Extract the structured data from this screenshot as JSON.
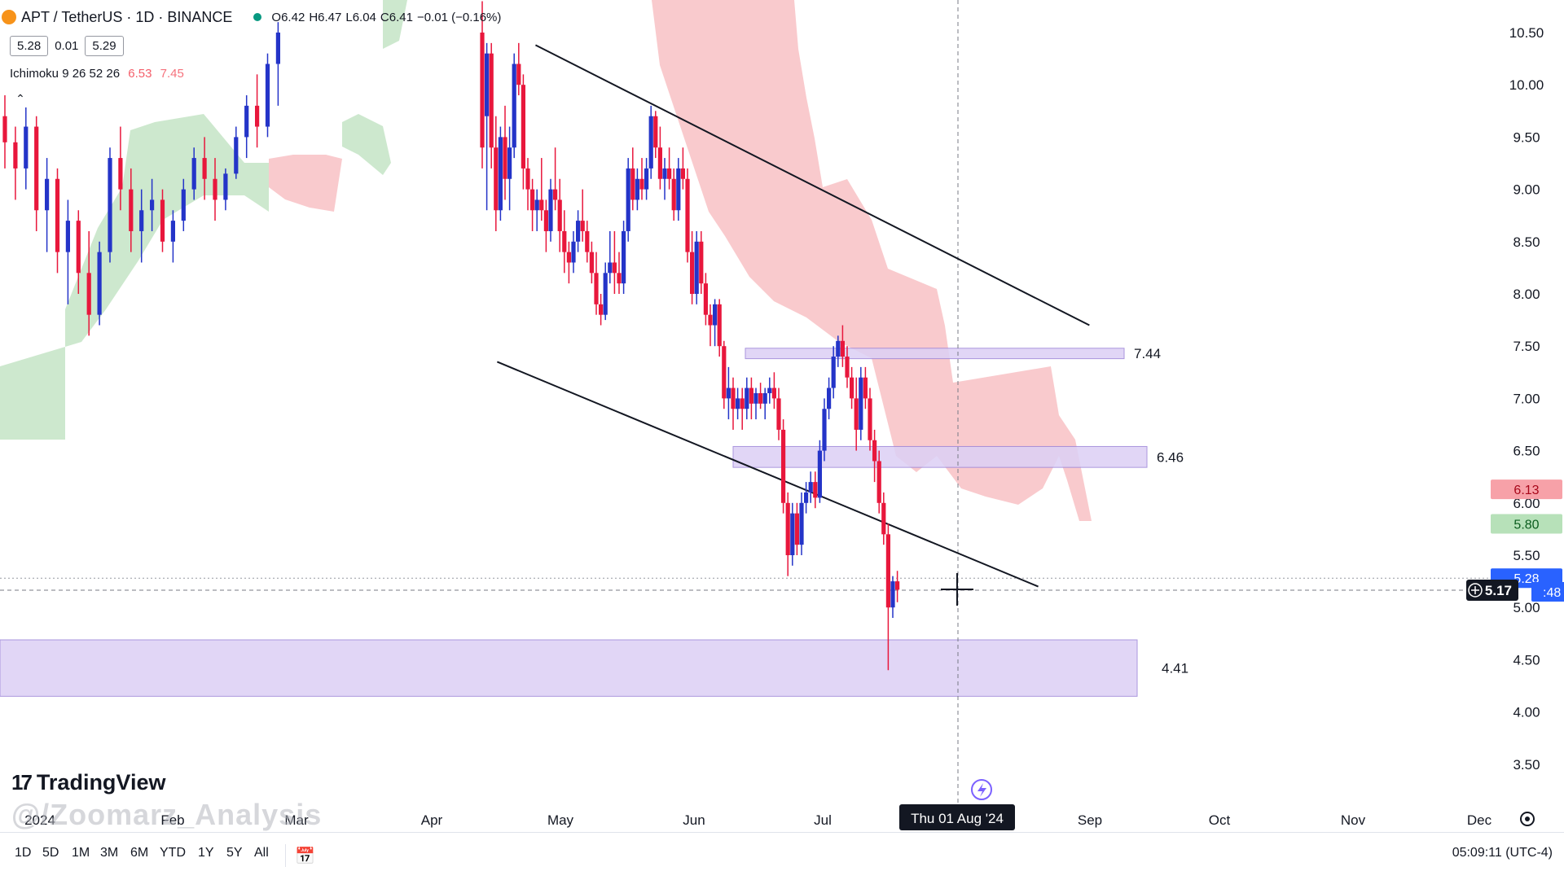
{
  "header": {
    "symbol": "APT / TetherUS · 1D · BINANCE",
    "open": "O6.42",
    "high": "H6.47",
    "low": "L6.04",
    "close": "C6.41",
    "change": "−0.01 (−0.16%)",
    "bid": "5.28",
    "spread": "0.01",
    "ask": "5.29"
  },
  "indicator": {
    "name": "Ichimoku 9 26 52 26",
    "value1": "6.53",
    "value2": "7.45",
    "collapse_icon": "chevron-up-icon"
  },
  "brand": {
    "logo_text": "TradingView",
    "watermark": "@/Zoomarz_Analysis"
  },
  "toolbar": {
    "timeframes": [
      "1D",
      "5D",
      "1M",
      "3M",
      "6M",
      "YTD",
      "1Y",
      "5Y",
      "All"
    ],
    "calendar_icon": "calendar-range-icon",
    "clock": "05:09:11 (UTC-4)"
  },
  "colors": {
    "up_candle": "#2434c8",
    "down_candle": "#e8173c",
    "bull_cloud": "#c8e6c9",
    "bear_cloud": "#f8c4c8",
    "zone": "#dcd0f5",
    "zone_border": "#9c84d8",
    "price_tag": "#2962ff",
    "red_tag": "#f7a1a8",
    "green_tag": "#b7e1b9"
  },
  "chart_data": {
    "type": "candlestick",
    "symbol": "APT / TetherUS",
    "interval": "1D",
    "y_axis": {
      "ticks": [
        "10.50",
        "10.00",
        "9.50",
        "9.00",
        "8.50",
        "8.00",
        "7.50",
        "7.00",
        "6.50",
        "6.00",
        "5.50",
        "5.00",
        "4.50",
        "4.00",
        "3.50"
      ],
      "range": [
        3.3,
        10.8
      ]
    },
    "x_axis": {
      "ticks": [
        "2024",
        "Feb",
        "Mar",
        "Apr",
        "May",
        "Jun",
        "Jul",
        "Sep",
        "Oct",
        "Nov",
        "Dec"
      ],
      "crosshair_label": "Thu 01 Aug '24"
    },
    "current_price": "5.17",
    "price_tags": [
      {
        "label": "6.13",
        "value": 6.13,
        "style": "red"
      },
      {
        "label": "5.80",
        "value": 5.8,
        "style": "green"
      },
      {
        "label": "5.28",
        "value": 5.28,
        "style": "blue"
      },
      {
        "label": ":48",
        "value": 5.15,
        "style": "blue"
      }
    ],
    "zones": [
      {
        "label": "7.44",
        "top": 7.48,
        "bottom": 7.38,
        "start": "Jun",
        "end": "Aug"
      },
      {
        "label": "6.46",
        "top": 6.54,
        "bottom": 6.34,
        "start": "Jun",
        "end": "Aug"
      },
      {
        "label": "4.41",
        "top": 4.69,
        "bottom": 4.15,
        "start": "2024",
        "end": "Aug"
      }
    ],
    "trendlines": [
      {
        "from": [
          "2024-04-26",
          10.38
        ],
        "to": [
          "2024-09-03",
          7.7
        ]
      },
      {
        "from": [
          "2024-04-17",
          7.35
        ],
        "to": [
          "2024-08-22",
          5.2
        ]
      }
    ],
    "candles_ohlc": [
      [
        9.7,
        9.9,
        9.2,
        9.45
      ],
      [
        9.45,
        9.6,
        8.9,
        9.2
      ],
      [
        9.2,
        9.8,
        9.0,
        9.6
      ],
      [
        9.6,
        9.7,
        8.6,
        8.8
      ],
      [
        8.8,
        9.3,
        8.4,
        9.1
      ],
      [
        9.1,
        9.2,
        8.2,
        8.4
      ],
      [
        8.4,
        8.9,
        7.9,
        8.7
      ],
      [
        8.7,
        8.8,
        8.0,
        8.2
      ],
      [
        8.2,
        8.6,
        7.6,
        7.8
      ],
      [
        7.8,
        8.5,
        7.7,
        8.4
      ],
      [
        8.4,
        9.4,
        8.3,
        9.3
      ],
      [
        9.3,
        9.6,
        8.8,
        9.0
      ],
      [
        9.0,
        9.2,
        8.4,
        8.6
      ],
      [
        8.6,
        9.0,
        8.3,
        8.8
      ],
      [
        8.8,
        9.1,
        8.6,
        8.9
      ],
      [
        8.9,
        9.0,
        8.4,
        8.5
      ],
      [
        8.5,
        8.8,
        8.3,
        8.7
      ],
      [
        8.7,
        9.1,
        8.6,
        9.0
      ],
      [
        9.0,
        9.4,
        8.9,
        9.3
      ],
      [
        9.3,
        9.5,
        8.9,
        9.1
      ],
      [
        9.1,
        9.3,
        8.7,
        8.9
      ],
      [
        8.9,
        9.2,
        8.8,
        9.15
      ],
      [
        9.15,
        9.6,
        9.1,
        9.5
      ],
      [
        9.5,
        9.9,
        9.3,
        9.8
      ],
      [
        9.8,
        10.1,
        9.4,
        9.6
      ],
      [
        9.6,
        10.3,
        9.5,
        10.2
      ],
      [
        10.2,
        10.6,
        9.8,
        10.5
      ],
      [
        10.5,
        10.8,
        9.2,
        9.4
      ],
      [
        9.7,
        10.4,
        8.8,
        10.3
      ],
      [
        10.3,
        10.4,
        9.2,
        9.4
      ],
      [
        9.4,
        9.7,
        8.6,
        8.8
      ],
      [
        8.8,
        9.6,
        8.7,
        9.5
      ],
      [
        9.5,
        9.8,
        8.9,
        9.1
      ],
      [
        9.1,
        9.6,
        8.8,
        9.4
      ],
      [
        9.4,
        10.3,
        9.3,
        10.2
      ],
      [
        10.2,
        10.4,
        9.9,
        10.0
      ],
      [
        10.0,
        10.1,
        9.0,
        9.2
      ],
      [
        9.2,
        9.3,
        8.8,
        9.0
      ],
      [
        9.0,
        9.1,
        8.6,
        8.8
      ],
      [
        8.8,
        9.0,
        8.6,
        8.9
      ],
      [
        8.9,
        9.3,
        8.7,
        8.8
      ],
      [
        8.8,
        8.9,
        8.4,
        8.6
      ],
      [
        8.6,
        9.1,
        8.5,
        9.0
      ],
      [
        9.0,
        9.4,
        8.8,
        8.9
      ],
      [
        8.9,
        9.1,
        8.4,
        8.6
      ],
      [
        8.6,
        8.8,
        8.2,
        8.4
      ],
      [
        8.4,
        8.5,
        8.1,
        8.3
      ],
      [
        8.3,
        8.6,
        8.2,
        8.5
      ],
      [
        8.5,
        8.8,
        8.4,
        8.7
      ],
      [
        8.7,
        9.0,
        8.5,
        8.6
      ],
      [
        8.6,
        8.7,
        8.3,
        8.4
      ],
      [
        8.4,
        8.5,
        8.1,
        8.2
      ],
      [
        8.2,
        8.4,
        7.8,
        7.9
      ],
      [
        7.9,
        8.0,
        7.7,
        7.8
      ],
      [
        7.8,
        8.3,
        7.75,
        8.2
      ],
      [
        8.2,
        8.6,
        8.1,
        8.3
      ],
      [
        8.3,
        8.6,
        8.0,
        8.2
      ],
      [
        8.2,
        8.4,
        8.0,
        8.1
      ],
      [
        8.1,
        8.7,
        8.0,
        8.6
      ],
      [
        8.6,
        9.3,
        8.5,
        9.2
      ],
      [
        9.2,
        9.4,
        8.8,
        8.9
      ],
      [
        8.9,
        9.2,
        8.8,
        9.1
      ],
      [
        9.1,
        9.3,
        8.9,
        9.0
      ],
      [
        9.0,
        9.3,
        8.9,
        9.2
      ],
      [
        9.2,
        9.8,
        9.1,
        9.7
      ],
      [
        9.7,
        9.75,
        9.3,
        9.4
      ],
      [
        9.4,
        9.6,
        9.0,
        9.1
      ],
      [
        9.1,
        9.3,
        8.9,
        9.2
      ],
      [
        9.2,
        9.4,
        9.0,
        9.1
      ],
      [
        9.1,
        9.2,
        8.7,
        8.8
      ],
      [
        8.8,
        9.3,
        8.7,
        9.2
      ],
      [
        9.2,
        9.4,
        9.0,
        9.1
      ],
      [
        9.1,
        9.2,
        8.3,
        8.4
      ],
      [
        8.4,
        8.6,
        7.9,
        8.0
      ],
      [
        8.0,
        8.6,
        7.9,
        8.5
      ],
      [
        8.5,
        8.6,
        8.0,
        8.1
      ],
      [
        8.1,
        8.2,
        7.7,
        7.8
      ],
      [
        7.8,
        7.9,
        7.5,
        7.7
      ],
      [
        7.7,
        7.95,
        7.5,
        7.9
      ],
      [
        7.9,
        7.95,
        7.4,
        7.5
      ],
      [
        7.5,
        7.55,
        6.9,
        7.0
      ],
      [
        7.0,
        7.3,
        6.8,
        7.1
      ],
      [
        7.1,
        7.2,
        6.7,
        6.9
      ],
      [
        6.9,
        7.1,
        6.8,
        7.0
      ],
      [
        7.0,
        7.1,
        6.7,
        6.9
      ],
      [
        6.9,
        7.2,
        6.8,
        7.1
      ],
      [
        7.1,
        7.2,
        6.8,
        6.95
      ],
      [
        6.95,
        7.1,
        6.8,
        7.05
      ],
      [
        7.05,
        7.15,
        6.9,
        6.95
      ],
      [
        6.95,
        7.1,
        6.8,
        7.05
      ],
      [
        7.05,
        7.2,
        6.95,
        7.1
      ],
      [
        7.1,
        7.25,
        6.9,
        7.0
      ],
      [
        7.0,
        7.1,
        6.6,
        6.7
      ],
      [
        6.7,
        6.8,
        5.9,
        6.0
      ],
      [
        6.0,
        6.1,
        5.3,
        5.5
      ],
      [
        5.5,
        6.0,
        5.4,
        5.9
      ],
      [
        5.9,
        6.0,
        5.5,
        5.6
      ],
      [
        5.6,
        6.1,
        5.5,
        6.0
      ],
      [
        6.0,
        6.2,
        5.9,
        6.1
      ],
      [
        6.1,
        6.3,
        6.0,
        6.2
      ],
      [
        6.2,
        6.3,
        5.95,
        6.05
      ],
      [
        6.05,
        6.6,
        6.0,
        6.5
      ],
      [
        6.5,
        7.0,
        6.4,
        6.9
      ],
      [
        6.9,
        7.2,
        6.8,
        7.1
      ],
      [
        7.1,
        7.5,
        7.0,
        7.4
      ],
      [
        7.4,
        7.6,
        7.3,
        7.55
      ],
      [
        7.55,
        7.7,
        7.3,
        7.4
      ],
      [
        7.4,
        7.5,
        7.1,
        7.2
      ],
      [
        7.2,
        7.3,
        6.9,
        7.0
      ],
      [
        7.0,
        7.2,
        6.5,
        6.7
      ],
      [
        6.7,
        7.3,
        6.6,
        7.2
      ],
      [
        7.2,
        7.3,
        6.9,
        7.0
      ],
      [
        7.0,
        7.1,
        6.5,
        6.6
      ],
      [
        6.6,
        6.7,
        6.2,
        6.4
      ],
      [
        6.4,
        6.5,
        5.9,
        6.0
      ],
      [
        6.0,
        6.1,
        5.6,
        5.7
      ],
      [
        5.7,
        5.8,
        4.4,
        5.0
      ],
      [
        5.0,
        5.3,
        4.9,
        5.25
      ],
      [
        5.25,
        5.35,
        5.05,
        5.17
      ]
    ]
  }
}
